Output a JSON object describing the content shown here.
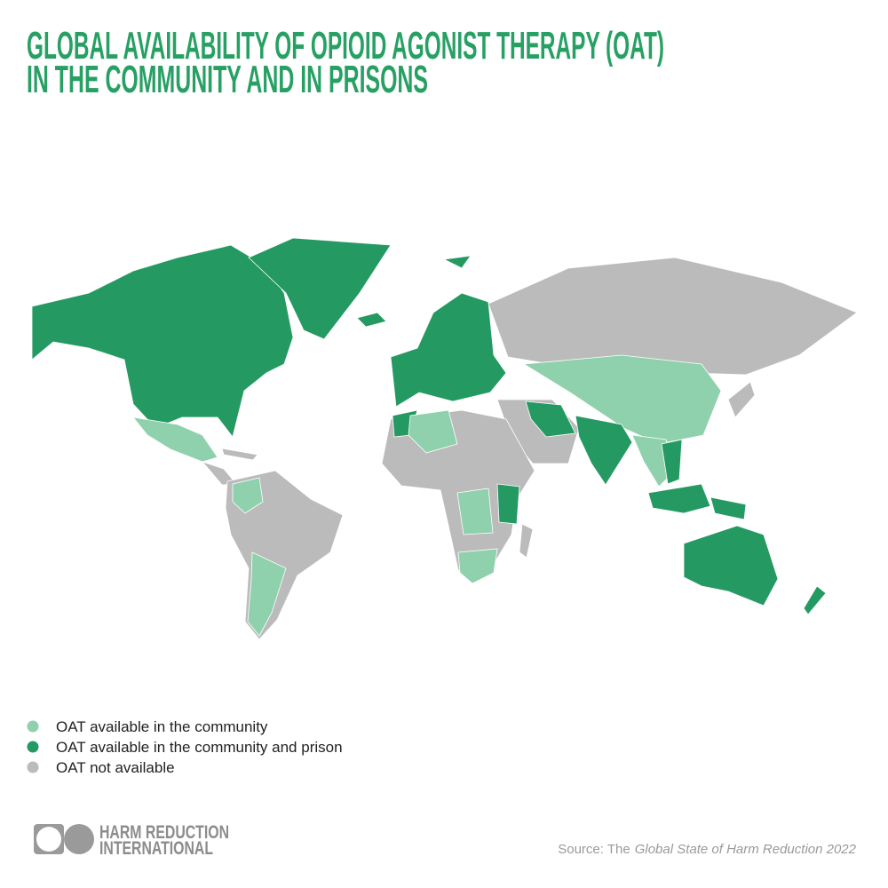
{
  "title": [
    "GLOBAL AVAILABILITY OF OPIOID AGONIST THERAPY (OAT)",
    "IN THE COMMUNITY AND IN PRISONS"
  ],
  "legend": [
    {
      "label": "OAT available in the community",
      "color": "#8fd1ac"
    },
    {
      "label": "OAT available in the community and prison",
      "color": "#249a62"
    },
    {
      "label": "OAT not available",
      "color": "#bbbbbb"
    }
  ],
  "logo": [
    "HARM REDUCTION",
    "INTERNATIONAL"
  ],
  "source": {
    "prefix": "Source: The",
    "italic": "Global State of Harm Reduction 2022"
  }
}
